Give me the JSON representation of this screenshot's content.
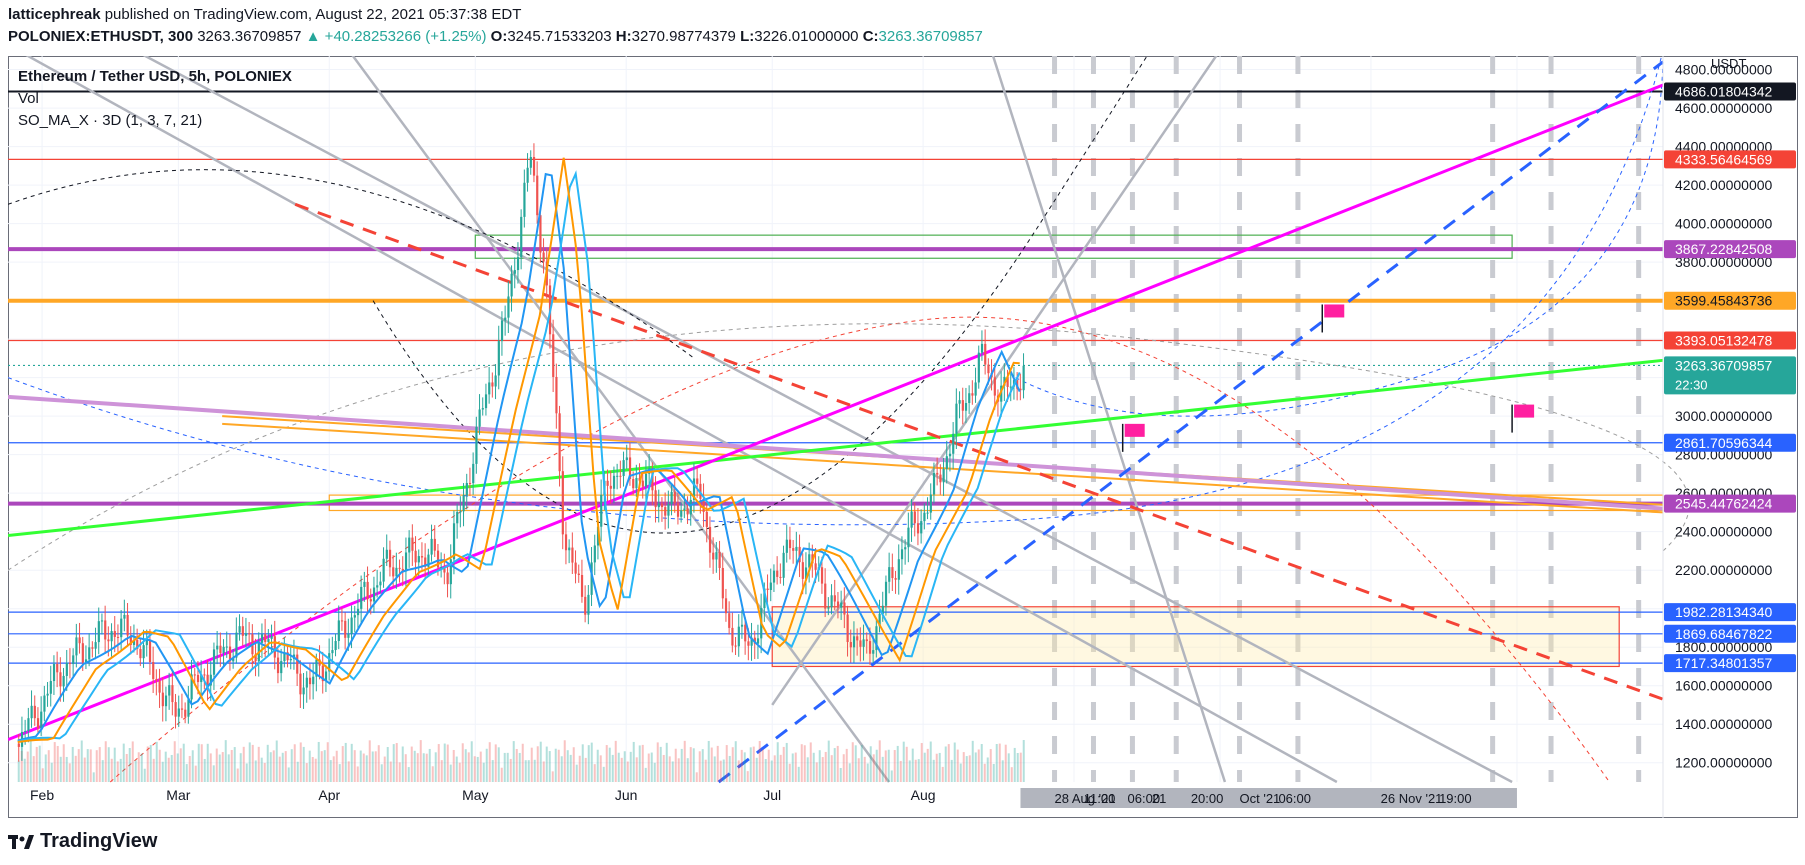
{
  "header": {
    "publisher": "latticephreak",
    "published_text": "published on TradingView.com, August 22, 2021 05:37:38 EDT",
    "symbol": "POLONIEX:ETHUSDT, 300",
    "last": "3263.36709857",
    "change": "▲ +40.28253266 (+1.25%)",
    "o_label": "O:",
    "o": "3245.71533203",
    "h_label": "H:",
    "h": "3270.98774379",
    "l_label": "L:",
    "l": "3226.01000000",
    "c_label": "C:",
    "c": "3263.36709857"
  },
  "legend": {
    "title": "Ethereum / Tether USD, 5h, POLONIEX",
    "vol": "Vol",
    "indicator": "SO_MA_X · 3D (1, 3, 7, 21)"
  },
  "footer": {
    "brand": "TradingView"
  },
  "colors": {
    "up": "#26a69a",
    "down": "#ef5350",
    "magenta": "#ff00ff",
    "green": "#33ff33",
    "orange": "#ffa726",
    "purple": "#ba68c8",
    "blue": "#2962ff",
    "red": "#f44336",
    "grey": "#b2b5be"
  },
  "chart_data": {
    "type": "candlestick",
    "title": "Ethereum / Tether USD, 5h, POLONIEX",
    "currency": "USDT",
    "ylim": [
      1100,
      4860
    ],
    "y_ticks": [
      "4800.00000000",
      "4600.00000000",
      "4400.00000000",
      "4200.00000000",
      "4000.00000000",
      "3800.00000000",
      "3600.00000000",
      "3400.00000000",
      "3200.00000000",
      "3000.00000000",
      "2800.00000000",
      "2600.00000000",
      "2400.00000000",
      "2200.00000000",
      "2000.00000000",
      "1800.00000000",
      "1600.00000000",
      "1400.00000000",
      "1200.00000000"
    ],
    "x_ticks": [
      "Feb",
      "Mar",
      "Apr",
      "May",
      "Jun",
      "Jul",
      "Aug"
    ],
    "x_tick_overlays": [
      "28 Aug '21",
      "11:00",
      "06:00",
      "21",
      "20:00",
      "Oct '21",
      "06:00",
      "26 Nov '21",
      "19:00"
    ],
    "price_path": [
      [
        "2021-01-27",
        1300
      ],
      [
        "2021-02-05",
        1700
      ],
      [
        "2021-02-15",
        1900
      ],
      [
        "2021-02-20",
        1850
      ],
      [
        "2021-02-28",
        1450
      ],
      [
        "2021-03-07",
        1700
      ],
      [
        "2021-03-13",
        1850
      ],
      [
        "2021-03-20",
        1800
      ],
      [
        "2021-03-28",
        1600
      ],
      [
        "2021-04-05",
        1950
      ],
      [
        "2021-04-12",
        2200
      ],
      [
        "2021-04-20",
        2300
      ],
      [
        "2021-04-25",
        2200
      ],
      [
        "2021-05-02",
        3000
      ],
      [
        "2021-05-07",
        3500
      ],
      [
        "2021-05-10",
        4000
      ],
      [
        "2021-05-12",
        4350
      ],
      [
        "2021-05-15",
        3800
      ],
      [
        "2021-05-19",
        2400
      ],
      [
        "2021-05-23",
        2000
      ],
      [
        "2021-05-28",
        2700
      ],
      [
        "2021-06-03",
        2700
      ],
      [
        "2021-06-10",
        2500
      ],
      [
        "2021-06-16",
        2600
      ],
      [
        "2021-06-22",
        1900
      ],
      [
        "2021-06-26",
        1800
      ],
      [
        "2021-07-03",
        2300
      ],
      [
        "2021-07-08",
        2250
      ],
      [
        "2021-07-14",
        2000
      ],
      [
        "2021-07-20",
        1750
      ],
      [
        "2021-07-27",
        2300
      ],
      [
        "2021-08-03",
        2600
      ],
      [
        "2021-08-08",
        3000
      ],
      [
        "2021-08-13",
        3300
      ],
      [
        "2021-08-17",
        3100
      ],
      [
        "2021-08-22",
        3263
      ]
    ],
    "price_levels": [
      {
        "value": "4686.01804342",
        "color": "#131722"
      },
      {
        "value": "4333.56464569",
        "color": "#f44336"
      },
      {
        "value": "3867.22842508",
        "color": "#ab47bc"
      },
      {
        "value": "3599.45843736",
        "color": "#ffa726"
      },
      {
        "value": "3393.05132478",
        "color": "#f44336"
      },
      {
        "value": "3263.36709857",
        "color": "#26a69a",
        "note": "22:30"
      },
      {
        "value": "2861.70596344",
        "color": "#2962ff"
      },
      {
        "value": "2545.44762424",
        "color": "#ab47bc"
      },
      {
        "value": "1982.28134340",
        "color": "#2962ff"
      },
      {
        "value": "1869.68467822",
        "color": "#2962ff"
      },
      {
        "value": "1717.34801357",
        "color": "#2962ff"
      }
    ],
    "series": [
      {
        "name": "Vol"
      },
      {
        "name": "SO_MA_X · 3D (1, 3, 7, 21)"
      }
    ],
    "annotations": {
      "boxes": [
        {
          "color": "green",
          "from": [
            3820,
            3940
          ]
        },
        {
          "color": "orange",
          "from": [
            2510,
            2590
          ]
        },
        {
          "color": "red",
          "from": [
            1700,
            2010
          ]
        }
      ]
    }
  }
}
